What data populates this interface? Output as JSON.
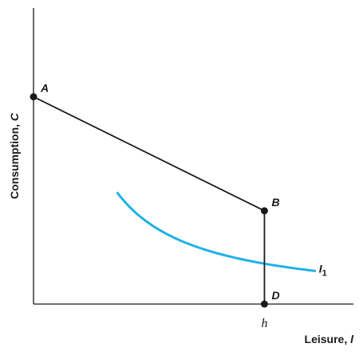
{
  "chart_data": {
    "type": "line",
    "xlabel": "Leisure, ",
    "xvar": "l",
    "ylabel": "Consumption, ",
    "yvar": "C",
    "tick_labels": {
      "h": "h"
    },
    "budget_line": {
      "segments": [
        {
          "from": "A",
          "to": "B"
        },
        {
          "from": "B",
          "to": "D"
        }
      ]
    },
    "points": [
      {
        "name": "A",
        "label": "A",
        "x": 0,
        "y": 0.7
      },
      {
        "name": "B",
        "label": "B",
        "x": 0.72,
        "y": 0.315
      },
      {
        "name": "D",
        "label": "D",
        "x": 0.72,
        "y": 0
      }
    ],
    "indifference_curve": {
      "label": "I",
      "subscript": "1",
      "color": "#1fb1e6",
      "k": 0.09828,
      "x_range": [
        0.26,
        0.88
      ]
    },
    "axis_color": "#1a1a1a",
    "grid": false
  }
}
